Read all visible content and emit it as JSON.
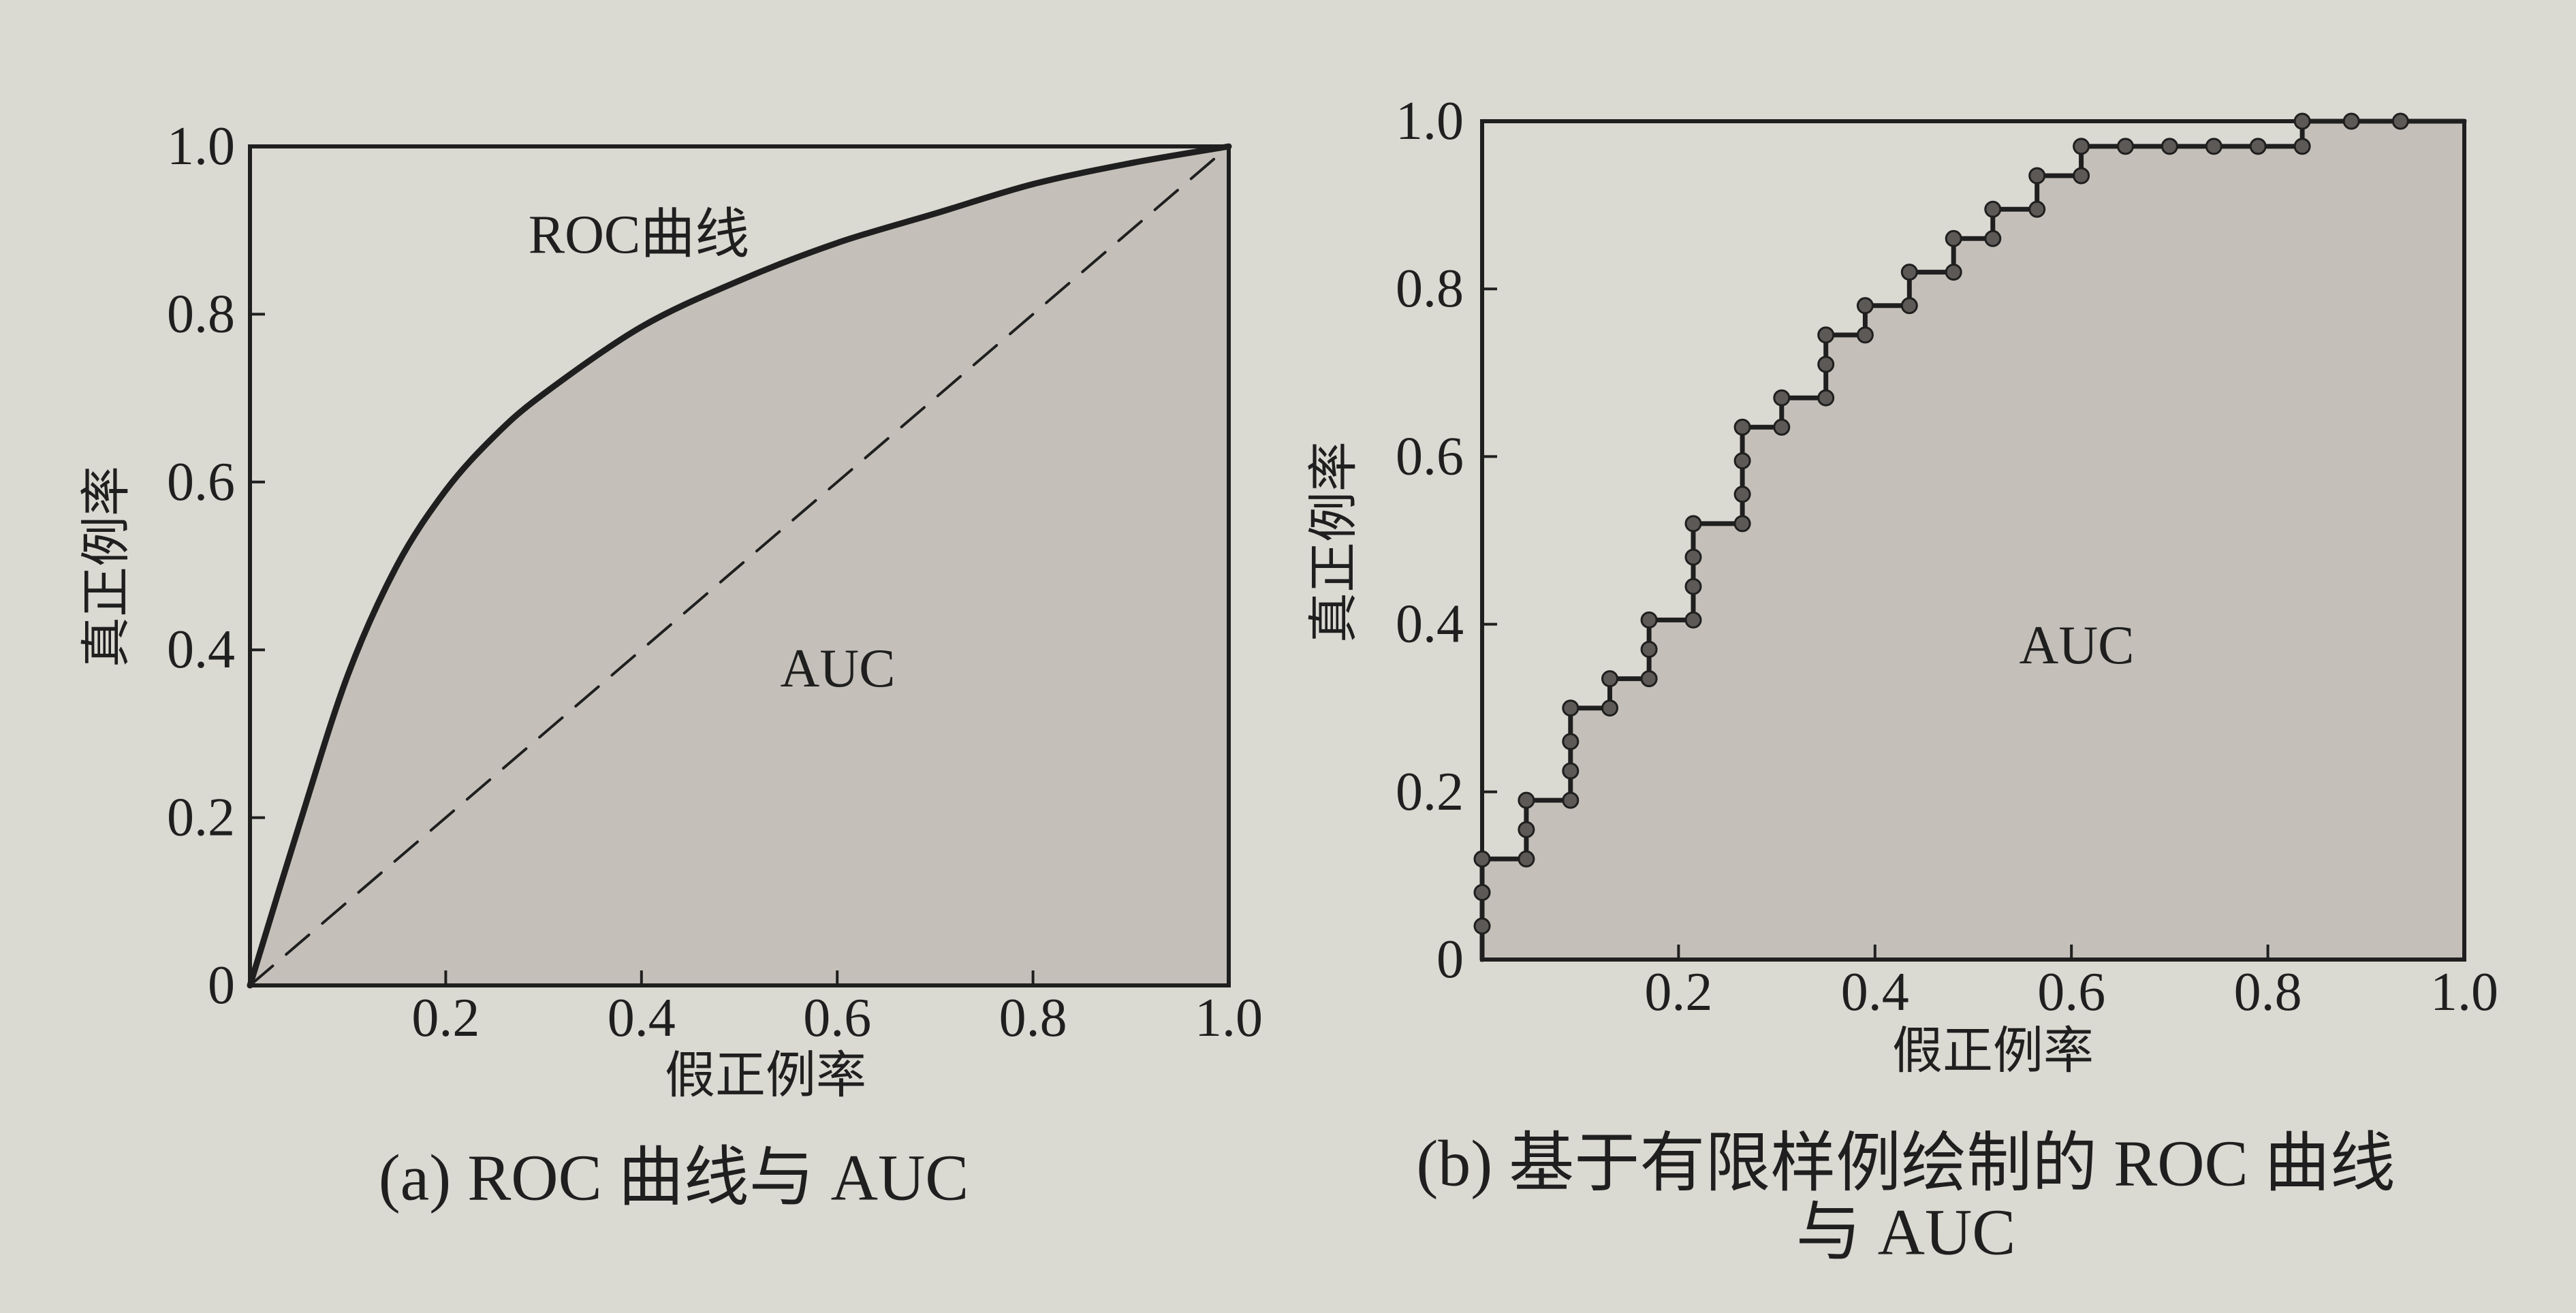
{
  "colors": {
    "paper": "#dad9d2",
    "shade": "#c4c0b9",
    "ink": "#1f1f1f",
    "marker": "#5c5957"
  },
  "chart_data": [
    {
      "type": "area",
      "caption": "(a) ROC 曲线与 AUC",
      "xlabel": "假正例率",
      "ylabel": "真正例率",
      "xlim": [
        0,
        1
      ],
      "ylim": [
        0,
        1
      ],
      "x_ticks": [
        0.2,
        0.4,
        0.6,
        0.8,
        1.0
      ],
      "x_tick_labels": [
        "0.2",
        "0.4",
        "0.6",
        "0.8",
        "1.0"
      ],
      "y_ticks": [
        0,
        0.2,
        0.4,
        0.6,
        0.8,
        1.0
      ],
      "y_tick_labels": [
        "0",
        "0.2",
        "0.4",
        "0.6",
        "0.8",
        "1.0"
      ],
      "grid": false,
      "area_label": "AUC",
      "series": [
        {
          "name": "ROC曲线",
          "smooth": true,
          "shaded": true,
          "x": [
            0,
            0.05,
            0.1,
            0.15,
            0.2,
            0.25,
            0.3,
            0.4,
            0.5,
            0.6,
            0.7,
            0.8,
            0.9,
            1.0
          ],
          "y": [
            0,
            0.19,
            0.37,
            0.5,
            0.59,
            0.655,
            0.705,
            0.785,
            0.84,
            0.885,
            0.92,
            0.955,
            0.98,
            1.0
          ]
        },
        {
          "dashed": true,
          "x": [
            0,
            1
          ],
          "y": [
            0,
            1
          ]
        }
      ]
    },
    {
      "type": "line",
      "caption_lines": [
        "(b) 基于有限样例绘制的 ROC 曲线",
        "与 AUC"
      ],
      "xlabel": "假正例率",
      "ylabel": "真正例率",
      "xlim": [
        0,
        1
      ],
      "ylim": [
        0,
        1
      ],
      "x_ticks": [
        0.2,
        0.4,
        0.6,
        0.8,
        1.0
      ],
      "x_tick_labels": [
        "0.2",
        "0.4",
        "0.6",
        "0.8",
        "1.0"
      ],
      "y_ticks": [
        0,
        0.2,
        0.4,
        0.6,
        0.8,
        1.0
      ],
      "y_tick_labels": [
        "0",
        "0.2",
        "0.4",
        "0.6",
        "0.8",
        "1.0"
      ],
      "grid": false,
      "area_label": "AUC",
      "series": [
        {
          "step": true,
          "markers": true,
          "shaded": true,
          "points": [
            [
              0,
              0.04
            ],
            [
              0,
              0.08
            ],
            [
              0,
              0.12
            ],
            [
              0.045,
              0.12
            ],
            [
              0.045,
              0.155
            ],
            [
              0.045,
              0.19
            ],
            [
              0.09,
              0.19
            ],
            [
              0.09,
              0.225
            ],
            [
              0.09,
              0.26
            ],
            [
              0.09,
              0.3
            ],
            [
              0.13,
              0.3
            ],
            [
              0.13,
              0.335
            ],
            [
              0.17,
              0.335
            ],
            [
              0.17,
              0.37
            ],
            [
              0.17,
              0.405
            ],
            [
              0.215,
              0.405
            ],
            [
              0.215,
              0.445
            ],
            [
              0.215,
              0.48
            ],
            [
              0.215,
              0.52
            ],
            [
              0.265,
              0.52
            ],
            [
              0.265,
              0.555
            ],
            [
              0.265,
              0.595
            ],
            [
              0.265,
              0.635
            ],
            [
              0.305,
              0.635
            ],
            [
              0.305,
              0.67
            ],
            [
              0.35,
              0.67
            ],
            [
              0.35,
              0.71
            ],
            [
              0.35,
              0.745
            ],
            [
              0.39,
              0.745
            ],
            [
              0.39,
              0.78
            ],
            [
              0.435,
              0.78
            ],
            [
              0.435,
              0.82
            ],
            [
              0.48,
              0.82
            ],
            [
              0.48,
              0.86
            ],
            [
              0.52,
              0.86
            ],
            [
              0.52,
              0.895
            ],
            [
              0.565,
              0.895
            ],
            [
              0.565,
              0.935
            ],
            [
              0.61,
              0.935
            ],
            [
              0.61,
              0.97
            ],
            [
              0.655,
              0.97
            ],
            [
              0.7,
              0.97
            ],
            [
              0.745,
              0.97
            ],
            [
              0.79,
              0.97
            ],
            [
              0.835,
              0.97
            ],
            [
              0.835,
              1.0
            ],
            [
              0.885,
              1.0
            ],
            [
              0.935,
              1.0
            ]
          ]
        }
      ]
    }
  ]
}
